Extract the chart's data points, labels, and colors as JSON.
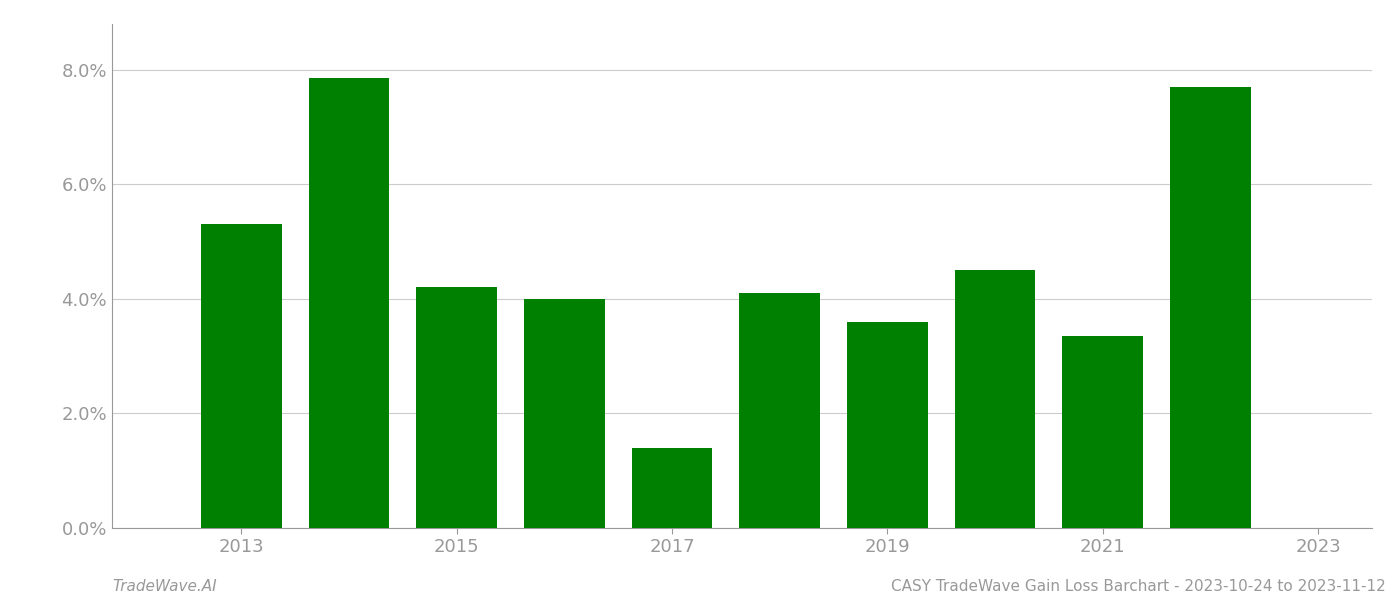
{
  "years": [
    2013,
    2014,
    2015,
    2016,
    2017,
    2018,
    2019,
    2020,
    2021,
    2022
  ],
  "values": [
    0.053,
    0.0785,
    0.042,
    0.04,
    0.014,
    0.041,
    0.036,
    0.045,
    0.0335,
    0.077
  ],
  "bar_color": "#008000",
  "background_color": "#ffffff",
  "ylim": [
    0,
    0.088
  ],
  "yticks": [
    0.0,
    0.02,
    0.04,
    0.06,
    0.08
  ],
  "xticks": [
    2013,
    2015,
    2017,
    2019,
    2021,
    2023
  ],
  "xlim_left": 2011.8,
  "xlim_right": 2023.5,
  "footer_left": "TradeWave.AI",
  "footer_right": "CASY TradeWave Gain Loss Barchart - 2023-10-24 to 2023-11-12",
  "grid_color": "#cccccc",
  "tick_color": "#999999",
  "spine_color": "#999999",
  "bar_width": 0.75,
  "font_size_ticks": 13,
  "font_size_footer": 11
}
